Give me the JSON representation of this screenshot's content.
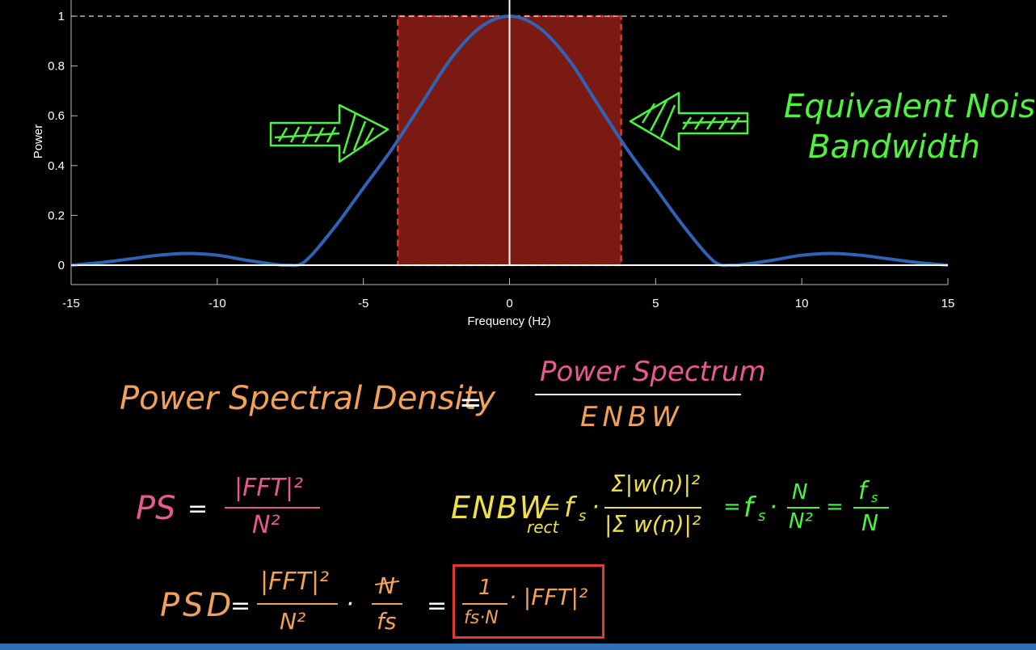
{
  "chart_data": {
    "type": "line",
    "xlabel": "Frequency (Hz)",
    "ylabel": "Power",
    "xlim": [
      -15,
      15
    ],
    "ylim": [
      -0.02,
      1.05
    ],
    "xticks": [
      -15,
      -10,
      -5,
      0,
      5,
      10,
      15
    ],
    "xtick_labels": [
      "-15",
      "-10",
      "-5",
      "0",
      "5",
      "10",
      "15"
    ],
    "yticks": [
      0,
      0.2,
      0.4,
      0.6,
      0.8,
      1
    ],
    "ytick_labels": [
      "0",
      "0.2",
      "0.4",
      "0.6",
      "0.8",
      "1"
    ],
    "grid": false,
    "series": [
      {
        "x": [
          -15,
          -14,
          -13,
          -12,
          -11,
          -10,
          -9,
          -8,
          -7.6,
          -7,
          -6,
          -5,
          -4,
          -3,
          -2,
          -1,
          0,
          1,
          2,
          3,
          4,
          5,
          6,
          7,
          7.6,
          8,
          9,
          10,
          11,
          12,
          13,
          14,
          15
        ],
        "y": [
          0.0,
          0.01,
          0.025,
          0.04,
          0.047,
          0.04,
          0.02,
          0.003,
          0.0,
          0.015,
          0.15,
          0.31,
          0.47,
          0.65,
          0.83,
          0.955,
          1.0,
          0.955,
          0.83,
          0.65,
          0.47,
          0.31,
          0.15,
          0.015,
          0.0,
          0.003,
          0.02,
          0.04,
          0.047,
          0.04,
          0.025,
          0.01,
          0.0
        ],
        "color": "#2f63b8"
      }
    ],
    "enbw_rect": {
      "x0": -3.82,
      "x1": 3.82,
      "y0": 0,
      "y1": 1
    },
    "reference_line_y": 1
  },
  "colors": {
    "rect_fill": "#7a1a12",
    "rect_border": "#e2352b",
    "curve": "#2f63b8",
    "annotation_green": "#4cf53c",
    "formula_orange": "#f2a15a",
    "formula_pink": "#e85a8f",
    "formula_yellow": "#f0e046",
    "box_red": "#e23a2e"
  },
  "annotation": {
    "line1": "Equivalent Noise",
    "line2": "Bandwidth"
  },
  "formulas": {
    "psd_def_lhs": "Power Spectral Density",
    "equals": "=",
    "psd_def_num": "Power Spectrum",
    "psd_def_den": "ENBW",
    "ps_lhs": "PS",
    "ps_num": "|FFT|²",
    "ps_den": "N²",
    "enbw_lhs": "ENBW",
    "enbw_sub": "rect",
    "enbw_fs": "f",
    "enbw_fs_sub": "s",
    "enbw_num": "Σ|w(n)|²",
    "enbw_den": "|Σ w(n)|²",
    "enbw_mid_num": "N",
    "enbw_mid_den": "N²",
    "enbw_res_num": "f",
    "enbw_res_den": "N",
    "psd_lhs": "PSD",
    "psd_num": "|FFT|²",
    "psd_den": "N²",
    "psd_n": "N",
    "psd_fs": "fs",
    "result_num": "1",
    "result_den": "fs·N",
    "result_tail": "· |FFT|²",
    "dot": "·"
  }
}
